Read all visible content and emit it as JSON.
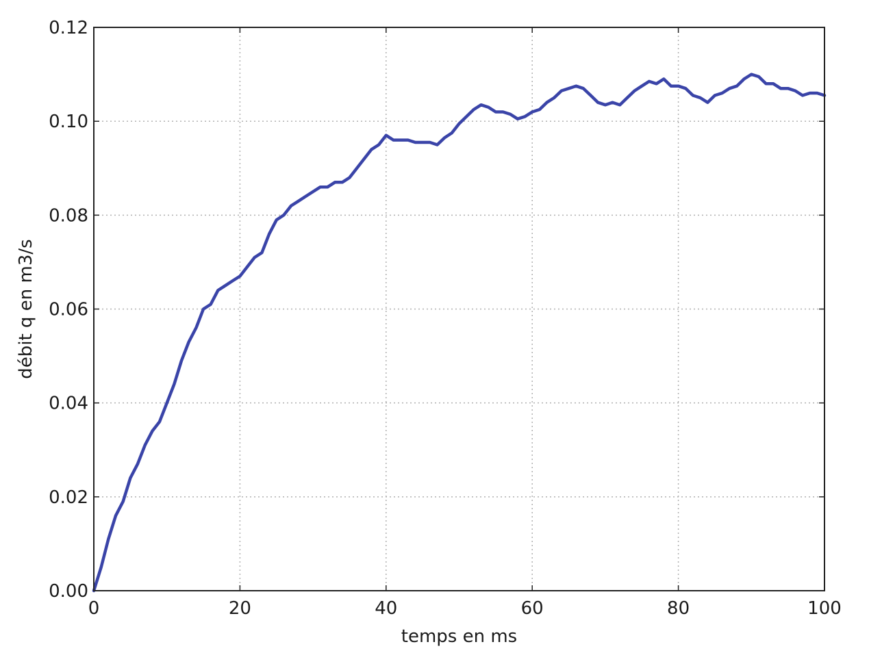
{
  "chart_data": {
    "type": "line",
    "title": "",
    "xlabel": "temps en ms",
    "ylabel": "débit q en m3/s",
    "xlim": [
      0,
      100
    ],
    "ylim": [
      0.0,
      0.12
    ],
    "xticks": [
      0,
      20,
      40,
      60,
      80,
      100
    ],
    "xtick_labels": [
      "0",
      "20",
      "40",
      "60",
      "80",
      "100"
    ],
    "yticks": [
      0.0,
      0.02,
      0.04,
      0.06,
      0.08,
      0.1,
      0.12
    ],
    "ytick_labels": [
      "0.00",
      "0.02",
      "0.04",
      "0.06",
      "0.08",
      "0.10",
      "0.12"
    ],
    "grid": true,
    "series": [
      {
        "color": "#3a44a8",
        "x": [
          0,
          1,
          2,
          3,
          4,
          5,
          6,
          7,
          8,
          9,
          10,
          11,
          12,
          13,
          14,
          15,
          16,
          17,
          18,
          19,
          20,
          21,
          22,
          23,
          24,
          25,
          26,
          27,
          28,
          29,
          30,
          31,
          32,
          33,
          34,
          35,
          36,
          37,
          38,
          39,
          40,
          41,
          42,
          43,
          44,
          45,
          46,
          47,
          48,
          49,
          50,
          51,
          52,
          53,
          54,
          55,
          56,
          57,
          58,
          59,
          60,
          61,
          62,
          63,
          64,
          65,
          66,
          67,
          68,
          69,
          70,
          71,
          72,
          73,
          74,
          75,
          76,
          77,
          78,
          79,
          80,
          81,
          82,
          83,
          84,
          85,
          86,
          87,
          88,
          89,
          90,
          91,
          92,
          93,
          94,
          95,
          96,
          97,
          98,
          99,
          100
        ],
        "y": [
          0.0,
          0.005,
          0.011,
          0.016,
          0.019,
          0.024,
          0.027,
          0.031,
          0.034,
          0.036,
          0.04,
          0.044,
          0.049,
          0.053,
          0.056,
          0.06,
          0.061,
          0.064,
          0.065,
          0.066,
          0.067,
          0.069,
          0.071,
          0.072,
          0.076,
          0.079,
          0.08,
          0.082,
          0.083,
          0.084,
          0.085,
          0.086,
          0.086,
          0.087,
          0.087,
          0.088,
          0.09,
          0.092,
          0.094,
          0.095,
          0.097,
          0.096,
          0.096,
          0.096,
          0.0955,
          0.0955,
          0.0955,
          0.095,
          0.0965,
          0.0975,
          0.0995,
          0.101,
          0.1025,
          0.1035,
          0.103,
          0.102,
          0.102,
          0.1015,
          0.1005,
          0.101,
          0.102,
          0.1025,
          0.104,
          0.105,
          0.1065,
          0.107,
          0.1075,
          0.107,
          0.1055,
          0.104,
          0.1035,
          0.104,
          0.1035,
          0.105,
          0.1065,
          0.1075,
          0.1085,
          0.108,
          0.109,
          0.1075,
          0.1075,
          0.107,
          0.1055,
          0.105,
          0.104,
          0.1055,
          0.106,
          0.107,
          0.1075,
          0.109,
          0.11,
          0.1095,
          0.108,
          0.108,
          0.107,
          0.107,
          0.1065,
          0.1055,
          0.106,
          0.106,
          0.1055
        ]
      }
    ]
  }
}
